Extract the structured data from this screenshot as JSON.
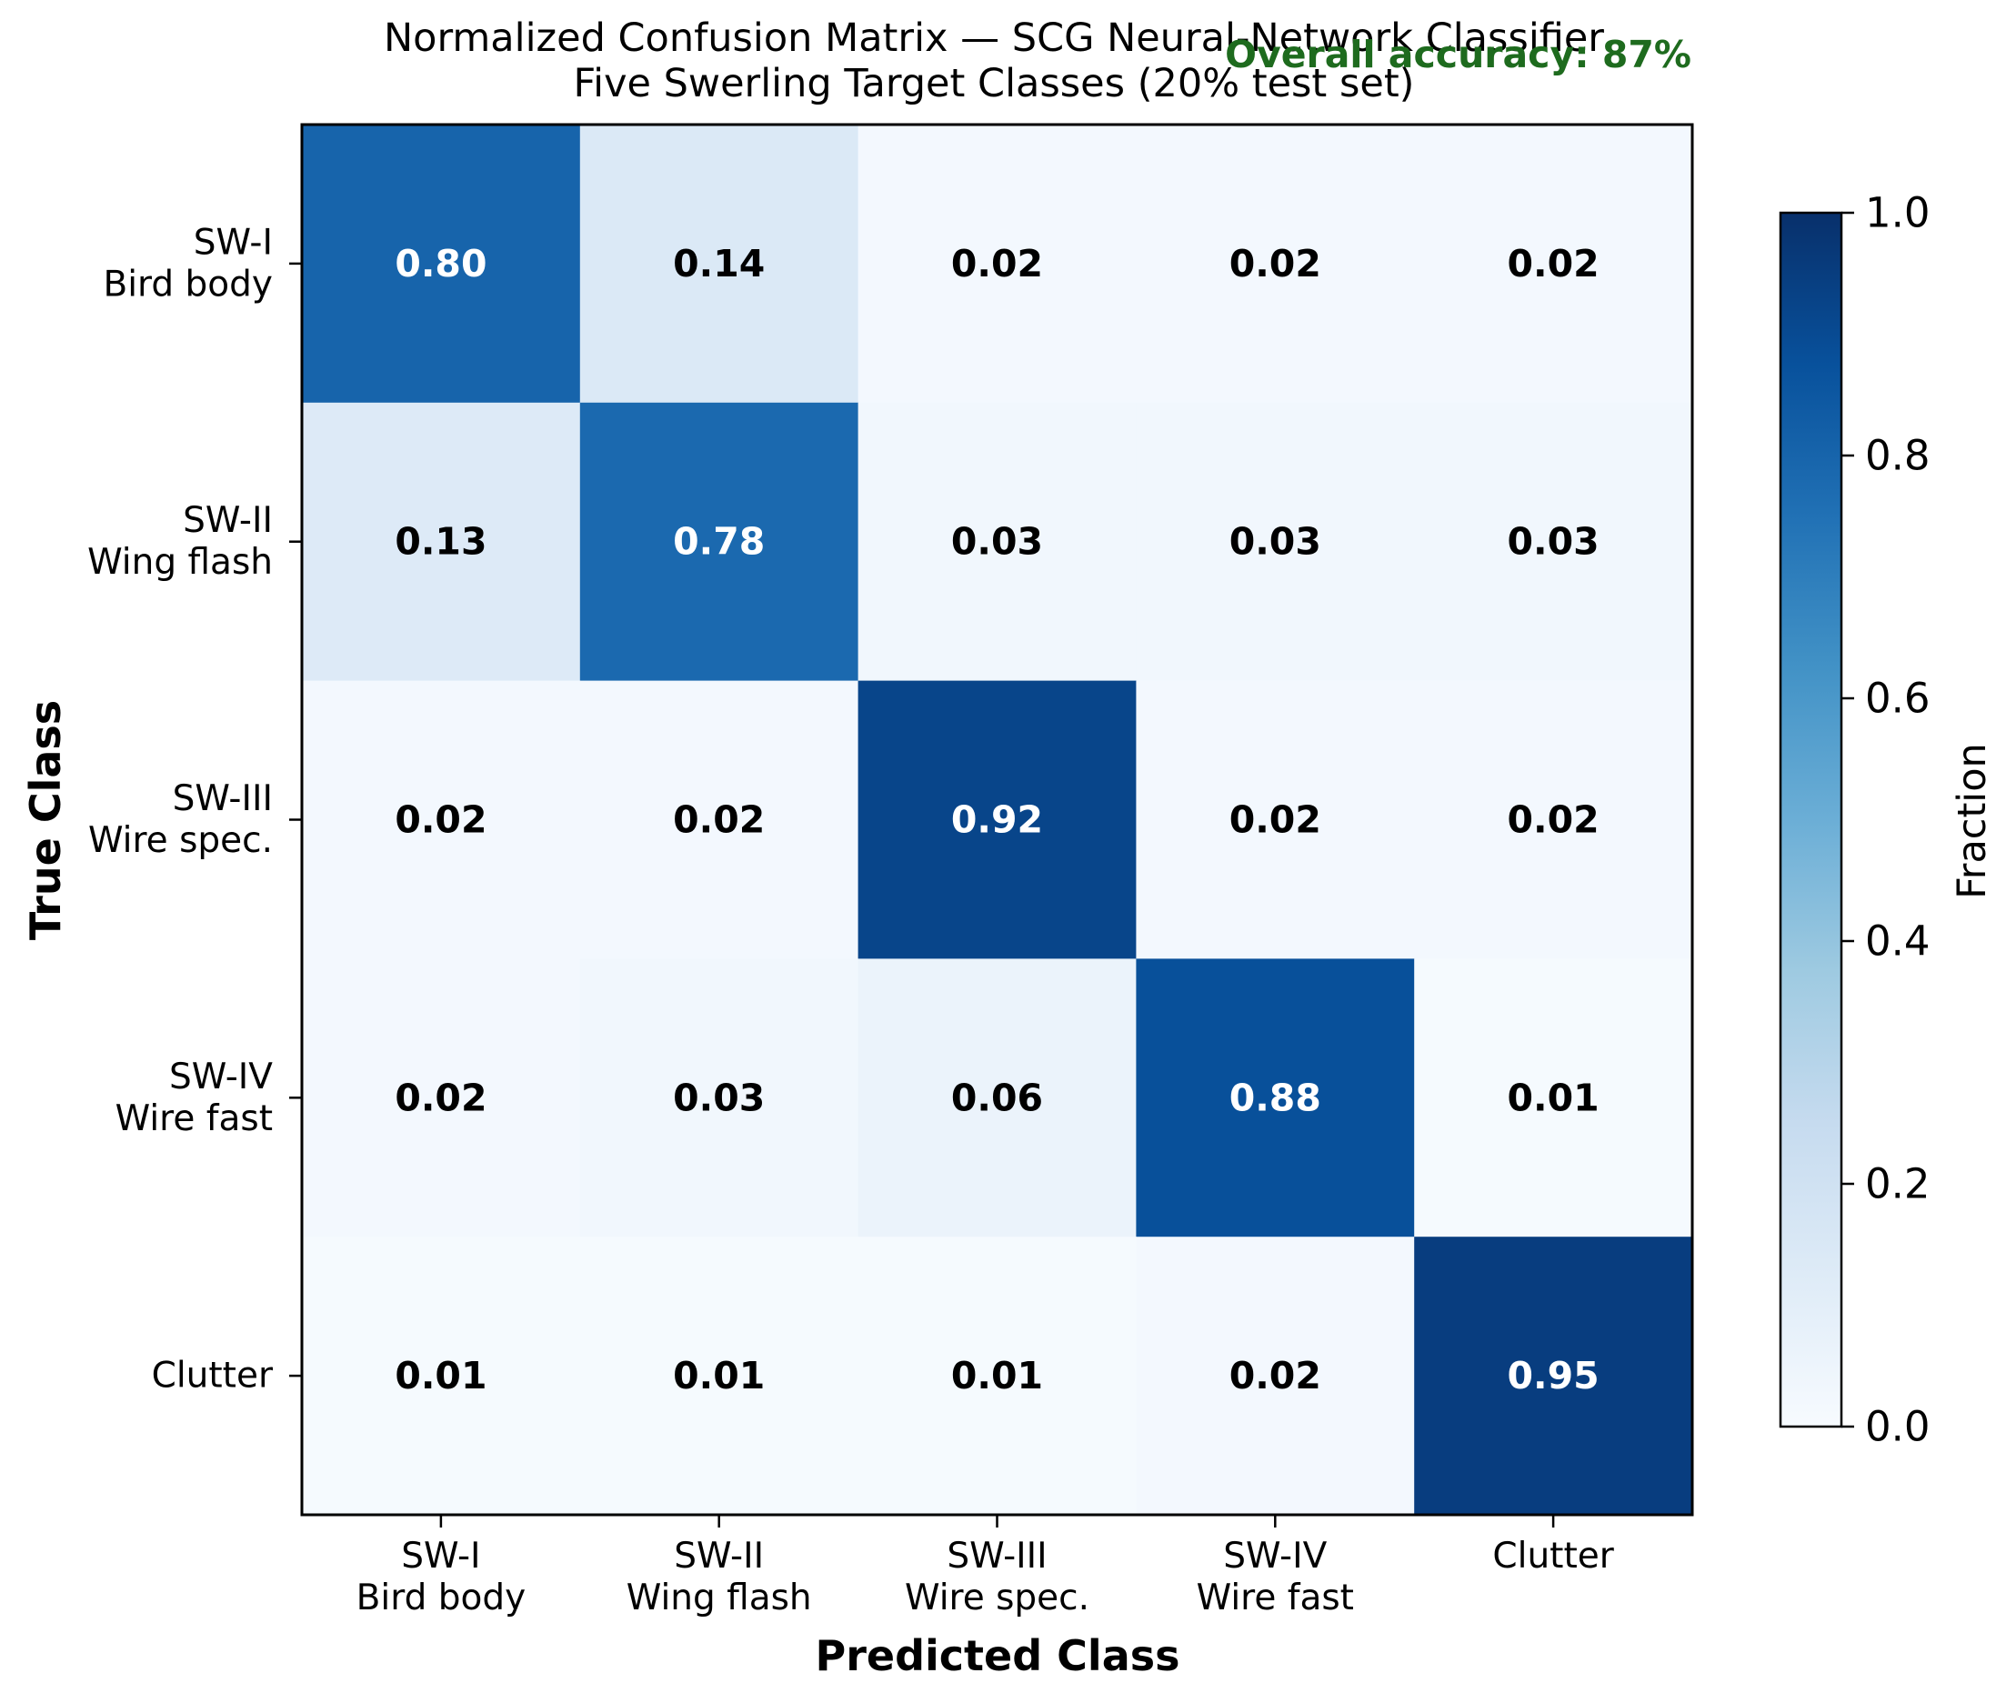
{
  "chart_data": {
    "type": "heatmap",
    "title": "Normalized Confusion Matrix — SCG Neural-Network Classifier",
    "subtitle": "Five Swerling Target Classes (20% test set)",
    "annotation": "Overall accuracy: 87%",
    "annotation_color": "#1e6b1e",
    "xlabel": "Predicted Class",
    "ylabel": "True Class",
    "x_categories": [
      [
        "SW-I",
        "Bird body"
      ],
      [
        "SW-II",
        "Wing flash"
      ],
      [
        "SW-III",
        "Wire spec."
      ],
      [
        "SW-IV",
        "Wire fast"
      ],
      [
        "Clutter"
      ]
    ],
    "y_categories": [
      [
        "SW-I",
        "Bird body"
      ],
      [
        "SW-II",
        "Wing flash"
      ],
      [
        "SW-III",
        "Wire spec."
      ],
      [
        "SW-IV",
        "Wire fast"
      ],
      [
        "Clutter"
      ]
    ],
    "values": [
      [
        0.8,
        0.14,
        0.02,
        0.02,
        0.02
      ],
      [
        0.13,
        0.78,
        0.03,
        0.03,
        0.03
      ],
      [
        0.02,
        0.02,
        0.92,
        0.02,
        0.02
      ],
      [
        0.02,
        0.03,
        0.06,
        0.88,
        0.01
      ],
      [
        0.01,
        0.01,
        0.01,
        0.02,
        0.95
      ]
    ],
    "colormap": "Blues",
    "colorbar": {
      "label": "Fraction",
      "range": [
        0.0,
        1.0
      ],
      "ticks": [
        "0.0",
        "0.2",
        "0.4",
        "0.6",
        "0.8",
        "1.0"
      ]
    }
  }
}
